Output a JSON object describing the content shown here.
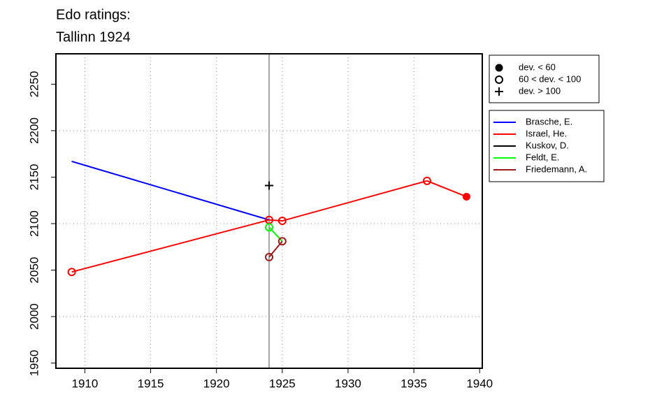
{
  "chart_data": {
    "type": "line",
    "title": [
      "Edo ratings:",
      "Tallinn 1924"
    ],
    "xlim": [
      1907.8,
      1940.2
    ],
    "ylim": [
      1944.4,
      2282.7
    ],
    "xticks": [
      1910,
      1915,
      1920,
      1925,
      1930,
      1935,
      1940
    ],
    "yticks": [
      1950,
      2000,
      2050,
      2100,
      2150,
      2200,
      2250
    ],
    "xgrid": [
      1910,
      1915,
      1920,
      1925,
      1930,
      1935
    ],
    "ygrid": [
      2000,
      2100,
      2200
    ],
    "vline": 1924,
    "marker_legend": [
      {
        "label": "dev. < 60",
        "marker": "filled"
      },
      {
        "label": "60 < dev. < 100",
        "marker": "open"
      },
      {
        "label": "dev. > 100",
        "marker": "plus"
      }
    ],
    "series": [
      {
        "name": "Brasche, E.",
        "color": "#0000ff",
        "x": [
          1909,
          1924
        ],
        "values": [
          2167,
          2104
        ],
        "markers": [
          null,
          null
        ]
      },
      {
        "name": "Israel, He.",
        "color": "#ff0000",
        "x": [
          1909,
          1924,
          1925,
          1936,
          1939
        ],
        "values": [
          2048,
          2104,
          2103,
          2146,
          2129
        ],
        "markers": [
          "open",
          "open",
          "open",
          "open",
          "filled"
        ]
      },
      {
        "name": "Kuskov, D.",
        "color": "#000000",
        "x": [
          1924
        ],
        "values": [
          2141
        ],
        "markers": [
          "plus"
        ]
      },
      {
        "name": "Feldt, E.",
        "color": "#00ff00",
        "x": [
          1924,
          1925
        ],
        "values": [
          2096,
          2081
        ],
        "markers": [
          "open",
          null
        ]
      },
      {
        "name": "Friedemann, A.",
        "color": "#a01818",
        "x": [
          1924,
          1925
        ],
        "values": [
          2064,
          2081
        ],
        "markers": [
          "open",
          "open"
        ]
      }
    ]
  }
}
